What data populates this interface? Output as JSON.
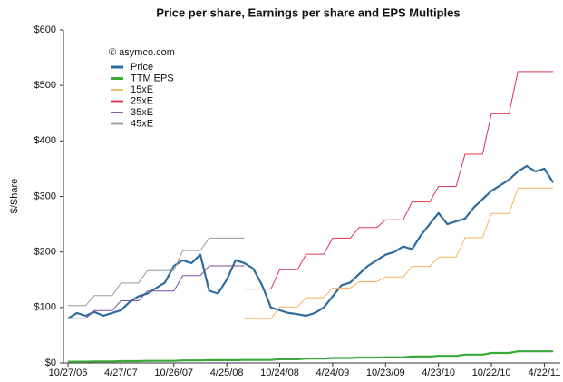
{
  "chart_data": {
    "type": "line",
    "title": "Price per share, Earnings per share and EPS Multiples",
    "ylabel": "$/Share",
    "annotation": "© asymco.com",
    "categories": [
      "10/27/06",
      null,
      null,
      null,
      null,
      null,
      "4/27/07",
      null,
      null,
      null,
      null,
      null,
      "10/26/07",
      null,
      null,
      null,
      null,
      null,
      "4/25/08",
      null,
      null,
      null,
      null,
      null,
      "10/24/08",
      null,
      null,
      null,
      null,
      null,
      "4/24/09",
      null,
      null,
      null,
      null,
      null,
      "10/23/09",
      null,
      null,
      null,
      null,
      null,
      "4/23/10",
      null,
      null,
      null,
      null,
      null,
      "10/22/10",
      null,
      null,
      null,
      null,
      null,
      "4/22/11",
      null
    ],
    "ylim": [
      0,
      600
    ],
    "yticks": [
      {
        "value": 0,
        "label": "$0"
      },
      {
        "value": 100,
        "label": "$100"
      },
      {
        "value": 200,
        "label": "$200"
      },
      {
        "value": 300,
        "label": "$300"
      },
      {
        "value": 400,
        "label": "$400"
      },
      {
        "value": 500,
        "label": "$500"
      },
      {
        "value": 600,
        "label": "$600"
      }
    ],
    "grid": false,
    "legend": "upper left",
    "series": [
      {
        "name": "Price",
        "color": "#2f6c9c",
        "width": 2.2,
        "values": [
          80,
          90,
          85,
          92,
          85,
          90,
          95,
          110,
          120,
          125,
          135,
          145,
          175,
          185,
          180,
          195,
          130,
          125,
          150,
          185,
          180,
          170,
          140,
          100,
          95,
          90,
          88,
          85,
          90,
          100,
          120,
          140,
          145,
          160,
          175,
          185,
          195,
          200,
          210,
          205,
          230,
          250,
          270,
          250,
          255,
          260,
          280,
          295,
          310,
          320,
          330,
          345,
          355,
          345,
          350,
          325
        ]
      },
      {
        "name": "TTM EPS",
        "color": "#3ba83a",
        "width": 2.2,
        "values": [
          2.3,
          2.3,
          2.3,
          2.7,
          2.7,
          2.7,
          3.2,
          3.2,
          3.2,
          3.7,
          3.7,
          3.7,
          3.7,
          4.5,
          4.5,
          4.5,
          5.0,
          5.0,
          5.0,
          5.0,
          5.32,
          5.32,
          5.32,
          5.32,
          6.72,
          6.72,
          6.72,
          7.84,
          7.84,
          7.84,
          9.0,
          9.0,
          9.0,
          9.76,
          9.76,
          9.76,
          10.32,
          10.32,
          10.32,
          11.6,
          11.6,
          11.6,
          12.72,
          12.72,
          12.72,
          15.04,
          15.04,
          15.04,
          17.96,
          17.96,
          17.96,
          21.0,
          21.0,
          21.0,
          21.0,
          21.0
        ]
      },
      {
        "name": "15xE",
        "color": "#f3b25a",
        "width": 1,
        "values": [
          null,
          null,
          null,
          null,
          null,
          null,
          null,
          null,
          null,
          null,
          null,
          null,
          null,
          null,
          null,
          null,
          null,
          null,
          null,
          null,
          79.8,
          79.8,
          79.8,
          79.8,
          100.8,
          100.8,
          100.8,
          117.6,
          117.6,
          117.6,
          135,
          135,
          135,
          146.4,
          146.4,
          146.4,
          154.8,
          154.8,
          154.8,
          174,
          174,
          174,
          190.8,
          190.8,
          190.8,
          225.6,
          225.6,
          225.6,
          269.4,
          269.4,
          269.4,
          315,
          315,
          315,
          315,
          315
        ]
      },
      {
        "name": "25xE",
        "color": "#e0334d",
        "width": 1,
        "values": [
          null,
          null,
          null,
          null,
          null,
          null,
          null,
          null,
          null,
          null,
          null,
          null,
          null,
          null,
          null,
          null,
          null,
          null,
          null,
          null,
          133,
          133,
          133,
          133,
          168,
          168,
          168,
          196,
          196,
          196,
          225,
          225,
          225,
          244,
          244,
          244,
          258,
          258,
          258,
          290,
          290,
          290,
          318,
          318,
          318,
          376,
          376,
          376,
          449,
          449,
          449,
          525,
          525,
          525,
          525,
          525
        ]
      },
      {
        "name": "35xE",
        "color": "#7a4e9e",
        "width": 1,
        "values": [
          80.5,
          80.5,
          80.5,
          94.5,
          94.5,
          94.5,
          112,
          112,
          112,
          129.5,
          129.5,
          129.5,
          129.5,
          157.5,
          157.5,
          157.5,
          175,
          175,
          175,
          175,
          175,
          null,
          null,
          null,
          null,
          null,
          null,
          null,
          null,
          null,
          null,
          null,
          null,
          null,
          null,
          null,
          null,
          null,
          null,
          null,
          null,
          null,
          null,
          null,
          null,
          null,
          null,
          null,
          null,
          null,
          null,
          null,
          null,
          null,
          null,
          null
        ]
      },
      {
        "name": "45xE",
        "color": "#9a9a9a",
        "width": 1,
        "values": [
          103.5,
          103.5,
          103.5,
          121.5,
          121.5,
          121.5,
          144,
          144,
          144,
          166.5,
          166.5,
          166.5,
          166.5,
          202.5,
          202.5,
          202.5,
          225,
          225,
          225,
          225,
          225,
          null,
          null,
          null,
          null,
          null,
          null,
          null,
          null,
          null,
          null,
          null,
          null,
          null,
          null,
          null,
          null,
          null,
          null,
          null,
          null,
          null,
          null,
          null,
          null,
          null,
          null,
          null,
          null,
          null,
          null,
          null,
          null,
          null,
          null,
          null
        ]
      }
    ]
  }
}
